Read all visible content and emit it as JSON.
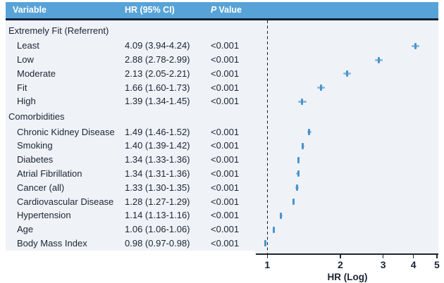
{
  "colors": {
    "header_bg": "#57a3d8",
    "header_text": "#ffffff",
    "underline": "#121e33",
    "body_bg": "#eff3f8",
    "text": "#1c2433",
    "ci": "#8bbade",
    "point": "#4a94cc",
    "axis": "#1c2633",
    "refline": "#1a1a1a"
  },
  "table": {
    "header": {
      "variable": "Variable",
      "hr": "HR (95% CI)",
      "p_italic": "P",
      "p_rest": "Value"
    },
    "rows": [
      {
        "label": "Extremely Fit (Referrent)",
        "section": true
      },
      {
        "label": "Least",
        "hr_text": "4.09 (3.94-4.24)",
        "p": "<0.001",
        "hr": 4.09,
        "lo": 3.94,
        "hi": 4.24
      },
      {
        "label": "Low",
        "hr_text": "2.88 (2.78-2.99)",
        "p": "<0.001",
        "hr": 2.88,
        "lo": 2.78,
        "hi": 2.99
      },
      {
        "label": "Moderate",
        "hr_text": "2.13 (2.05-2.21)",
        "p": "<0.001",
        "hr": 2.13,
        "lo": 2.05,
        "hi": 2.21
      },
      {
        "label": "Fit",
        "hr_text": "1.66 (1.60-1.73)",
        "p": "<0.001",
        "hr": 1.66,
        "lo": 1.6,
        "hi": 1.73
      },
      {
        "label": "High",
        "hr_text": "1.39 (1.34-1.45)",
        "p": "<0.001",
        "hr": 1.39,
        "lo": 1.34,
        "hi": 1.45
      },
      {
        "label": "Comorbidities",
        "section": true
      },
      {
        "label": "Chronic Kidney Disease",
        "hr_text": "1.49 (1.46-1.52)",
        "p": "<0.001",
        "hr": 1.49,
        "lo": 1.46,
        "hi": 1.52
      },
      {
        "label": "Smoking",
        "hr_text": "1.40 (1.39-1.42)",
        "p": "<0.001",
        "hr": 1.4,
        "lo": 1.39,
        "hi": 1.42
      },
      {
        "label": "Diabetes",
        "hr_text": "1.34 (1.33-1.36)",
        "p": "<0.001",
        "hr": 1.34,
        "lo": 1.33,
        "hi": 1.36
      },
      {
        "label": "Atrial Fibrillation",
        "hr_text": "1.34 (1.31-1.36)",
        "p": "<0.001",
        "hr": 1.34,
        "lo": 1.31,
        "hi": 1.36
      },
      {
        "label": "Cancer (all)",
        "hr_text": "1.33 (1.30-1.35)",
        "p": "<0.001",
        "hr": 1.33,
        "lo": 1.3,
        "hi": 1.35
      },
      {
        "label": "Cardiovascular Disease",
        "hr_text": "1.28 (1.27-1.29)",
        "p": "<0.001",
        "hr": 1.28,
        "lo": 1.27,
        "hi": 1.29
      },
      {
        "label": "Hypertension",
        "hr_text": "1.14 (1.13-1.16)",
        "p": "<0.001",
        "hr": 1.14,
        "lo": 1.13,
        "hi": 1.16
      },
      {
        "label": "Age",
        "hr_text": "1.06 (1.06-1.06)",
        "p": "<0.001",
        "hr": 1.06,
        "lo": 1.06,
        "hi": 1.06
      },
      {
        "label": "Body Mass Index",
        "hr_text": "0.98 (0.97-0.98)",
        "p": "<0.001",
        "hr": 0.98,
        "lo": 0.97,
        "hi": 0.98
      }
    ]
  },
  "chart_data": {
    "type": "forest",
    "xlabel": "HR (Log)",
    "x_scale": "log10",
    "x_ticks": [
      1,
      2,
      3,
      4,
      5
    ],
    "xlim": [
      0.93,
      5
    ],
    "reference_line_x": 1,
    "grid": false,
    "points": [
      {
        "label": "Least",
        "hr": 4.09,
        "ci": [
          3.94,
          4.24
        ]
      },
      {
        "label": "Low",
        "hr": 2.88,
        "ci": [
          2.78,
          2.99
        ]
      },
      {
        "label": "Moderate",
        "hr": 2.13,
        "ci": [
          2.05,
          2.21
        ]
      },
      {
        "label": "Fit",
        "hr": 1.66,
        "ci": [
          1.6,
          1.73
        ]
      },
      {
        "label": "High",
        "hr": 1.39,
        "ci": [
          1.34,
          1.45
        ]
      },
      {
        "label": "Chronic Kidney Disease",
        "hr": 1.49,
        "ci": [
          1.46,
          1.52
        ]
      },
      {
        "label": "Smoking",
        "hr": 1.4,
        "ci": [
          1.39,
          1.42
        ]
      },
      {
        "label": "Diabetes",
        "hr": 1.34,
        "ci": [
          1.33,
          1.36
        ]
      },
      {
        "label": "Atrial Fibrillation",
        "hr": 1.34,
        "ci": [
          1.31,
          1.36
        ]
      },
      {
        "label": "Cancer (all)",
        "hr": 1.33,
        "ci": [
          1.3,
          1.35
        ]
      },
      {
        "label": "Cardiovascular Disease",
        "hr": 1.28,
        "ci": [
          1.27,
          1.29
        ]
      },
      {
        "label": "Hypertension",
        "hr": 1.14,
        "ci": [
          1.13,
          1.16
        ]
      },
      {
        "label": "Age",
        "hr": 1.06,
        "ci": [
          1.06,
          1.06
        ]
      },
      {
        "label": "Body Mass Index",
        "hr": 0.98,
        "ci": [
          0.97,
          0.98
        ]
      }
    ]
  }
}
